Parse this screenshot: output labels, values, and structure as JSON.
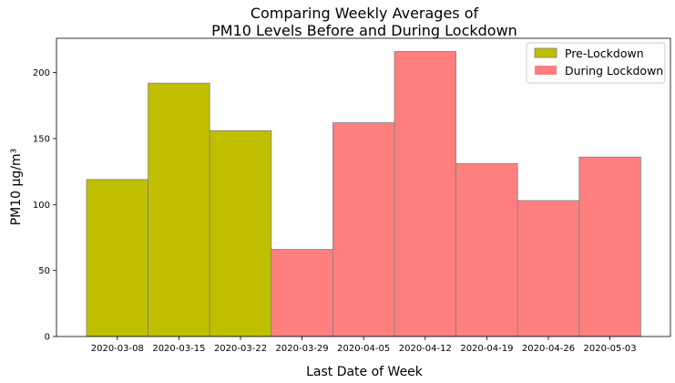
{
  "chart_data": {
    "type": "bar",
    "title_lines": [
      "Comparing Weekly Averages of",
      "PM10 Levels Before and During Lockdown"
    ],
    "xlabel": "Last Date of Week",
    "ylabel": "PM10 μg/m³",
    "ylim": [
      0,
      226
    ],
    "yticks": [
      0,
      50,
      100,
      150,
      200
    ],
    "grid": false,
    "legend_position": "top-right",
    "categories": [
      "2020-03-08",
      "2020-03-15",
      "2020-03-22",
      "2020-03-29",
      "2020-04-05",
      "2020-04-12",
      "2020-04-19",
      "2020-04-26",
      "2020-05-03"
    ],
    "series": [
      {
        "name": "Pre-Lockdown",
        "color": "#bfbf00",
        "values": [
          119,
          192,
          156,
          null,
          null,
          null,
          null,
          null,
          null
        ]
      },
      {
        "name": "During Lockdown",
        "color": "#ff7f7f",
        "values": [
          null,
          null,
          null,
          66,
          162,
          216,
          131,
          103,
          136
        ]
      }
    ]
  }
}
